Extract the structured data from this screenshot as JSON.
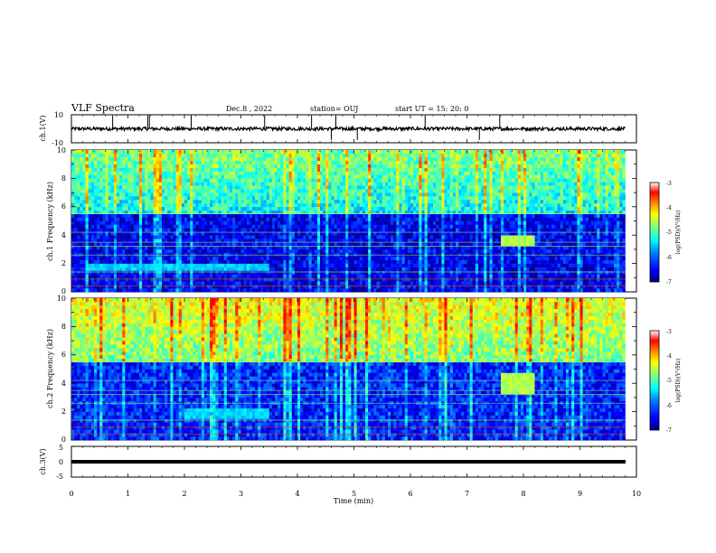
{
  "header": {
    "title": "VLF Spectra",
    "date": "Dec.8 , 2022",
    "station": "station= OUJ",
    "start": "start UT = 15: 20: 0"
  },
  "chart_data": [
    {
      "type": "line",
      "panel": "ch1-waveform",
      "ylabel": "ch.1(V)",
      "ylim": [
        -10,
        10
      ],
      "y_ticks": [
        "10",
        "-10"
      ],
      "baseline": 0,
      "spikes_min": [
        0.73,
        1.35,
        1.38,
        2.12,
        3.42,
        4.25,
        4.6,
        4.68,
        5.06,
        6.26,
        7.22,
        7.58
      ],
      "xlim": [
        0,
        10
      ]
    },
    {
      "type": "heatmap",
      "panel": "ch1-spectrogram",
      "ylabel": "ch.1  Frequency (kHz)",
      "ylim": [
        0,
        10
      ],
      "y_ticks": [
        "0",
        "2",
        "4",
        "6",
        "8",
        "10"
      ],
      "xlim": [
        0,
        9.8
      ],
      "colorbar": {
        "label": "log(PSD)(V²/Hz)",
        "range": [
          -7,
          -3
        ],
        "ticks": [
          "-3",
          "-4",
          "-5",
          "-6",
          "-7"
        ]
      },
      "features": [
        {
          "name": "broadband sferics",
          "freq_khz": [
            5.5,
            10
          ],
          "log_psd": -4.5
        },
        {
          "name": "noise floor",
          "freq_khz": [
            0,
            5.5
          ],
          "log_psd": -6.5
        },
        {
          "name": "emission band",
          "time_min": [
            0.3,
            3.5
          ],
          "freq_khz": [
            1.5,
            2.1
          ],
          "log_psd": -5.5
        },
        {
          "name": "emission patch",
          "time_min": [
            7.6,
            8.2
          ],
          "freq_khz": [
            3.2,
            4.0
          ],
          "log_psd": -4.5
        }
      ]
    },
    {
      "type": "heatmap",
      "panel": "ch2-spectrogram",
      "ylabel": "ch.2  Frequency (kHz)",
      "ylim": [
        0,
        10
      ],
      "y_ticks": [
        "0",
        "2",
        "4",
        "6",
        "8",
        "10"
      ],
      "xlim": [
        0,
        9.8
      ],
      "colorbar": {
        "label": "log(PSD)(V²/Hz)",
        "range": [
          -7,
          -3
        ],
        "ticks": [
          "-3",
          "-4",
          "-5",
          "-6",
          "-7"
        ]
      },
      "features": [
        {
          "name": "broadband sferics",
          "freq_khz": [
            5.5,
            10
          ],
          "log_psd": -4.0
        },
        {
          "name": "noise floor",
          "freq_khz": [
            0,
            5.5
          ],
          "log_psd": -6.3
        },
        {
          "name": "emission band",
          "time_min": [
            2.0,
            3.5
          ],
          "freq_khz": [
            1.6,
            2.2
          ],
          "log_psd": -5.5
        },
        {
          "name": "emission patch",
          "time_min": [
            7.6,
            8.2
          ],
          "freq_khz": [
            3.3,
            4.8
          ],
          "log_psd": -4.5
        }
      ]
    },
    {
      "type": "line",
      "panel": "ch3-waveform",
      "ylabel": "ch.3(V)",
      "ylim": [
        -5,
        5
      ],
      "y_ticks": [
        "5",
        "0",
        "-5"
      ],
      "baseline": 0,
      "xlim": [
        0,
        10
      ]
    }
  ],
  "x_axis": {
    "label": "Time (min)",
    "ticks": [
      "0",
      "1",
      "2",
      "3",
      "4",
      "5",
      "6",
      "7",
      "8",
      "9",
      "10"
    ],
    "xlim": [
      0,
      10
    ]
  },
  "colors": {
    "colormap": [
      "#00007f",
      "#0000ff",
      "#0080ff",
      "#00ffff",
      "#80ff80",
      "#ffff00",
      "#ff8000",
      "#ff0000",
      "#ffffff"
    ]
  }
}
